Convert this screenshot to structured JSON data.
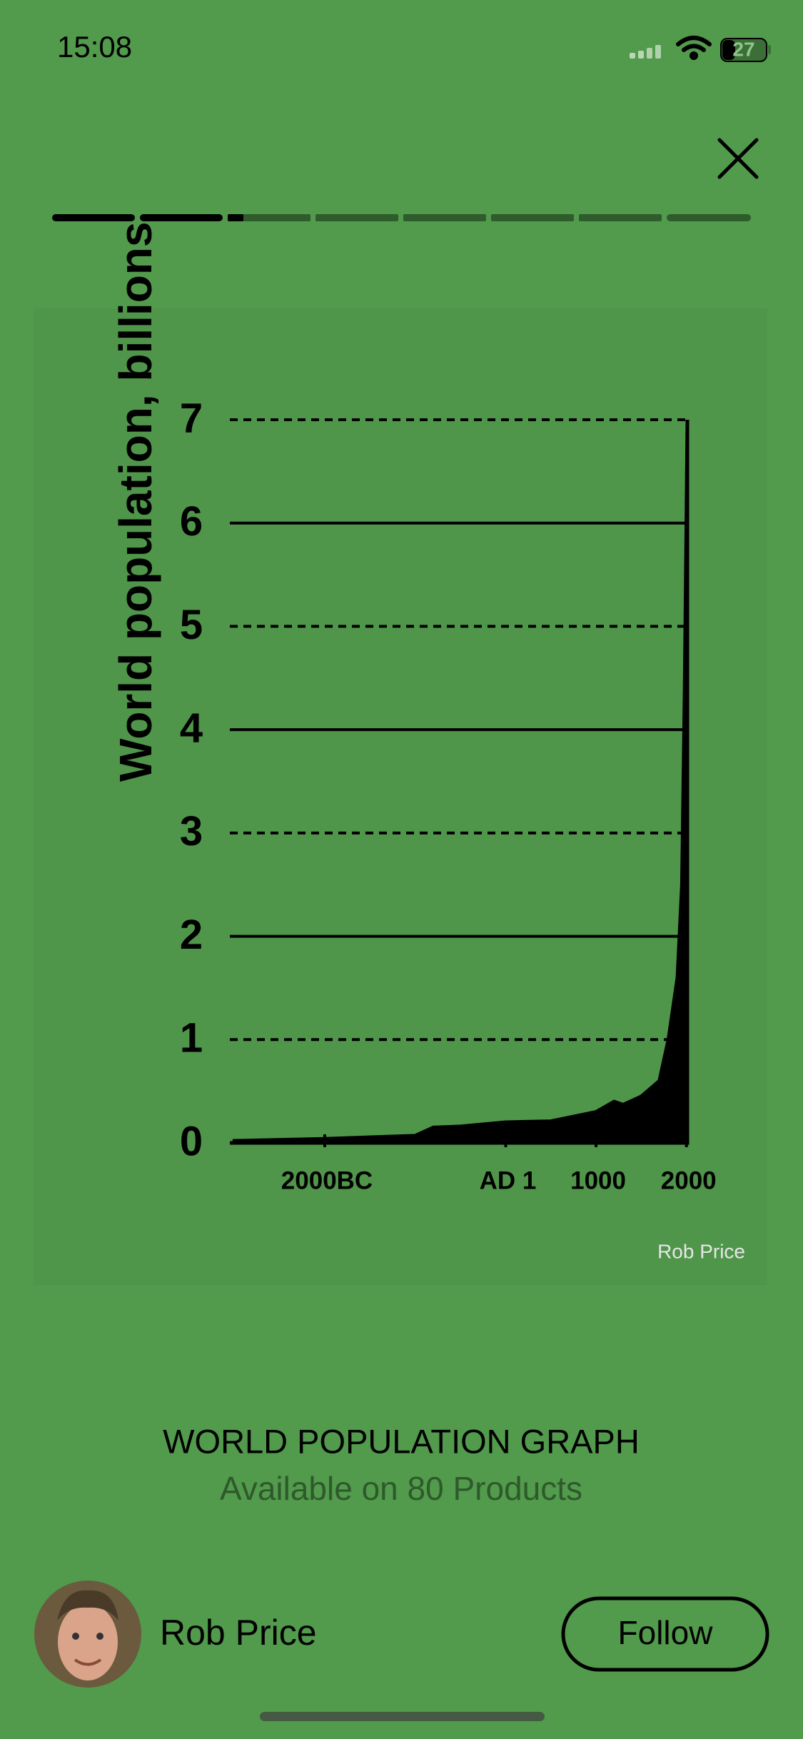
{
  "status_bar": {
    "time": "15:08",
    "battery": "27"
  },
  "chart_data": {
    "type": "area",
    "ylabel": "World population, billions",
    "x": [
      -3000,
      -2000,
      -1000,
      -800,
      -500,
      1,
      500,
      1000,
      1200,
      1300,
      1500,
      1700,
      1800,
      1900,
      1950,
      1980,
      2000,
      2010
    ],
    "values": [
      0.02,
      0.04,
      0.07,
      0.15,
      0.16,
      0.2,
      0.21,
      0.3,
      0.4,
      0.37,
      0.45,
      0.6,
      1,
      1.6,
      2.5,
      4.4,
      6.1,
      7
    ],
    "color": "#000000",
    "xlim": [
      -3050,
      2010
    ],
    "xticks": [
      {
        "value": -2000,
        "label": "2000BC"
      },
      {
        "value": 1,
        "label": "AD 1"
      },
      1000,
      2000
    ],
    "ylim": [
      0,
      7
    ],
    "yticks": [
      0,
      1,
      2,
      3,
      4,
      5,
      6,
      7
    ],
    "grid": true
  },
  "artwork": {
    "credit": "Rob Price"
  },
  "product": {
    "title": "WORLD POPULATION GRAPH",
    "subtitle": "Available on 80 Products"
  },
  "artist": {
    "name": "Rob Price",
    "follow": "Follow"
  }
}
